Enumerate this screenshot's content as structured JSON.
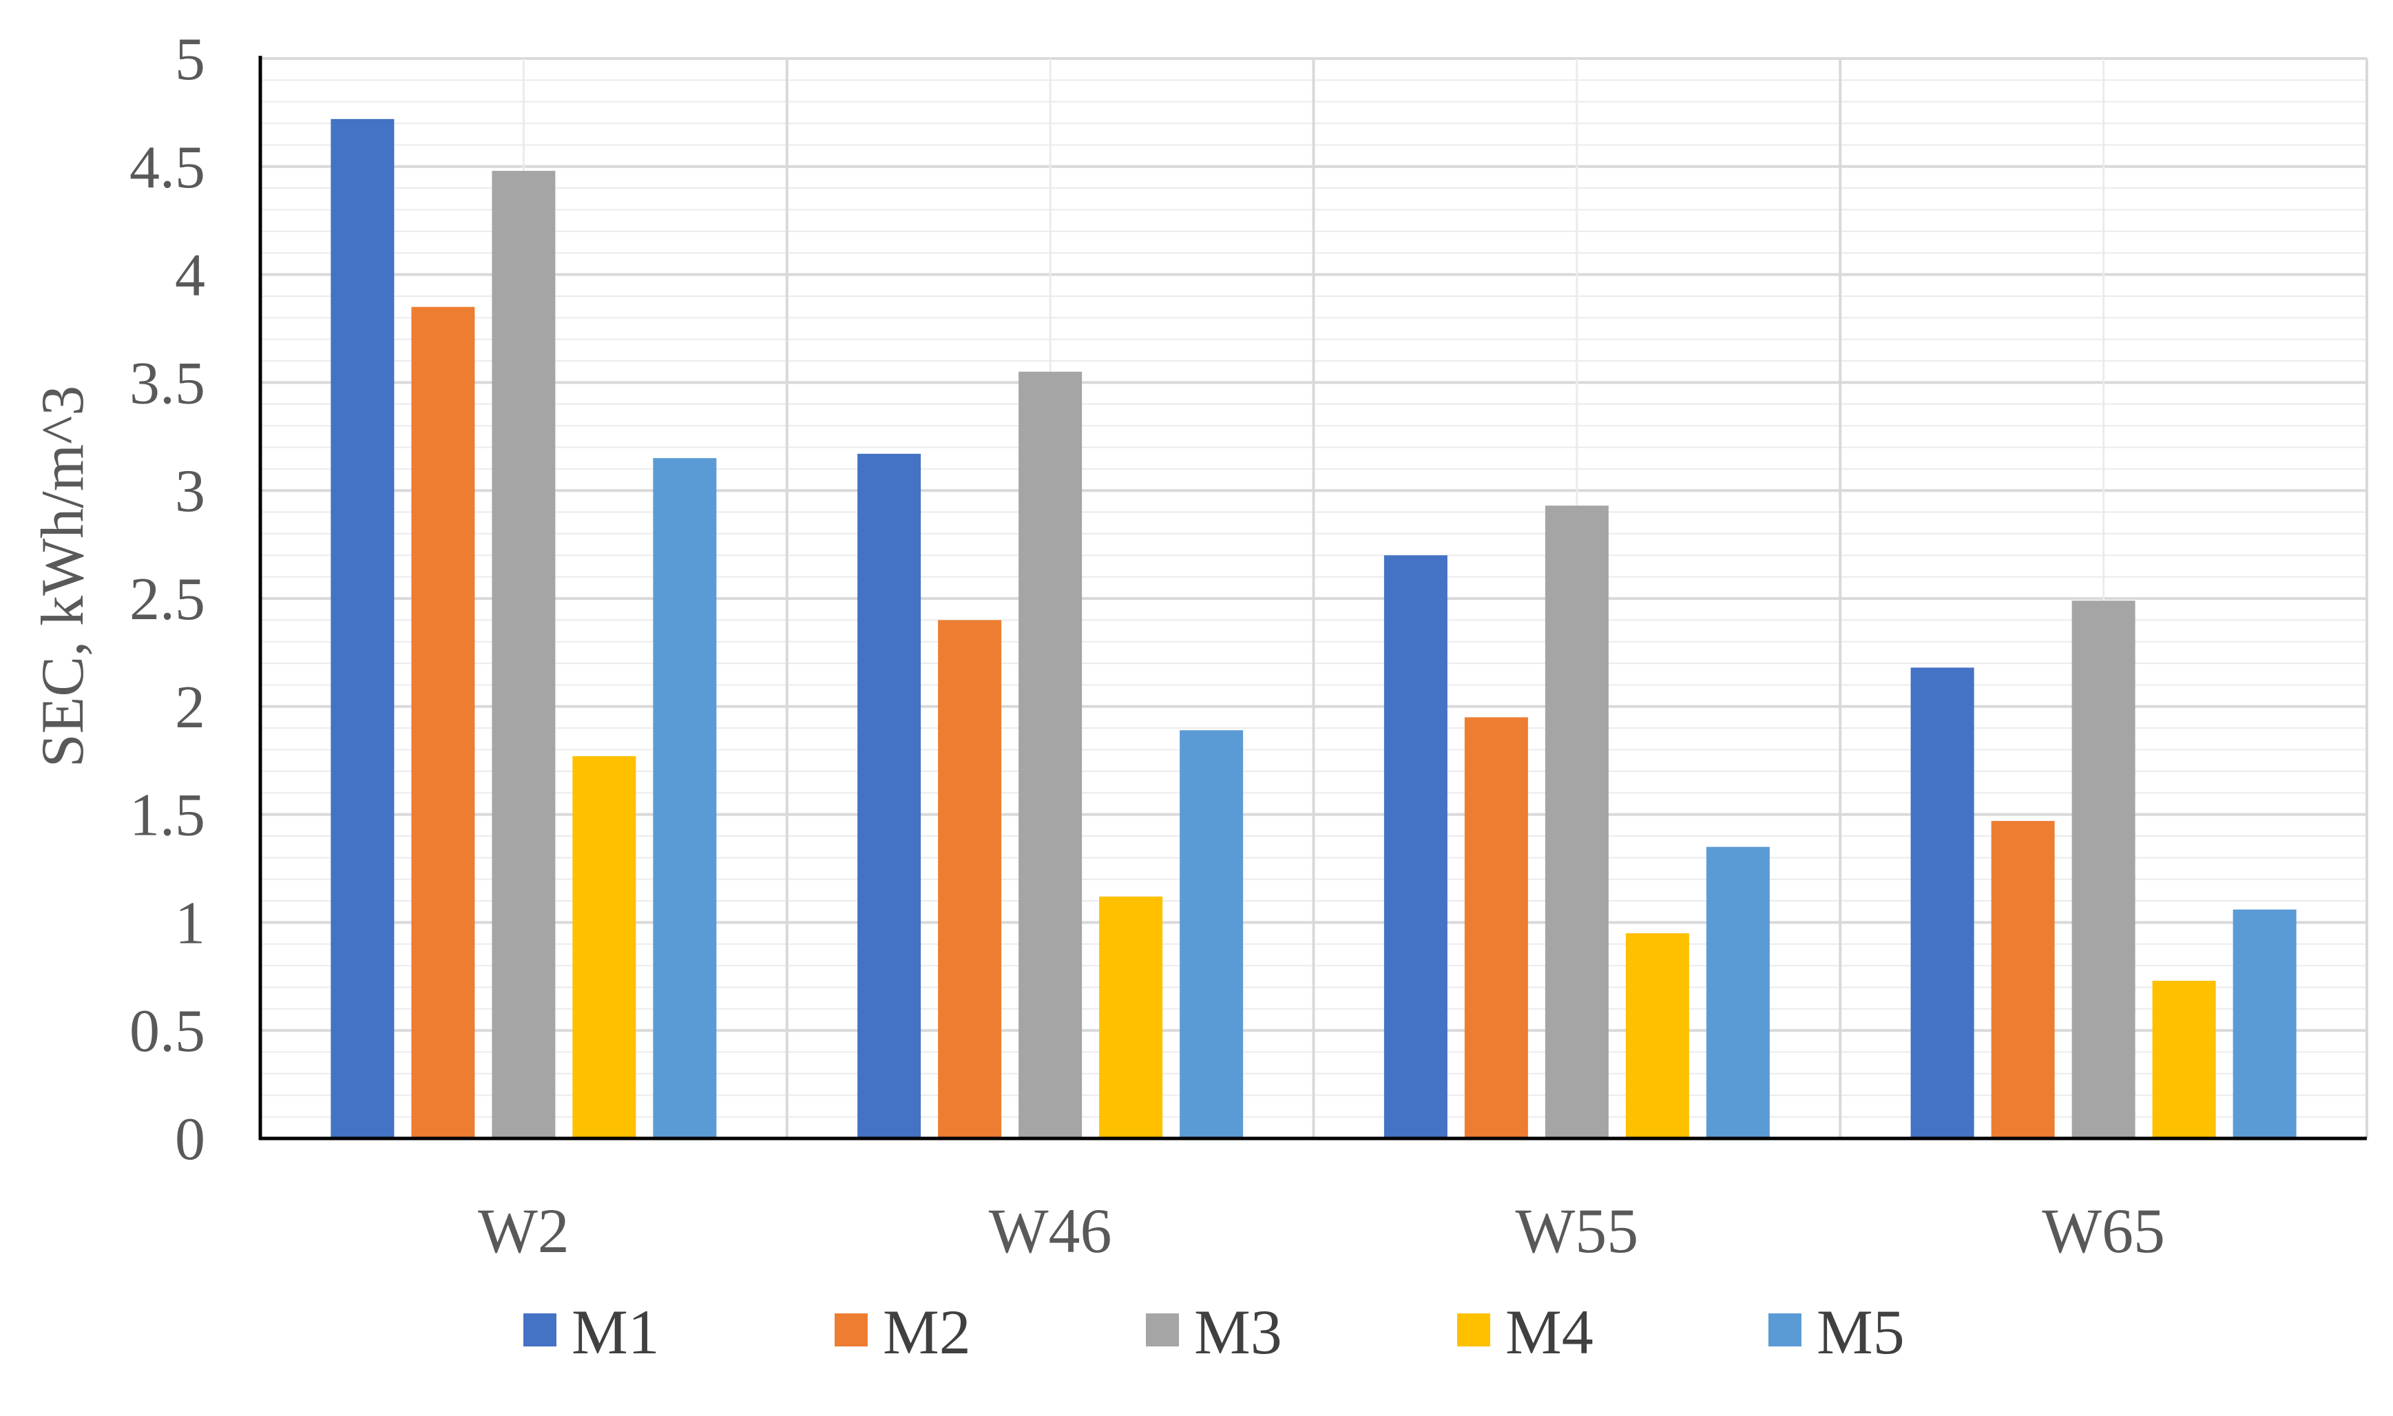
{
  "chart_data": {
    "type": "bar",
    "title": "",
    "xlabel": "",
    "ylabel": "SEC, kWh/m^3",
    "ylim": [
      0,
      5
    ],
    "yticks": [
      "0",
      "0.5",
      "1",
      "1.5",
      "2",
      "2.5",
      "3",
      "3.5",
      "4",
      "4.5",
      "5"
    ],
    "ytick_values": [
      0,
      0.5,
      1,
      1.5,
      2,
      2.5,
      3,
      3.5,
      4,
      4.5,
      5
    ],
    "minor_grid_step": 0.1,
    "grid": true,
    "legend_position": "bottom",
    "categories": [
      "W2",
      "W46",
      "W55",
      "W65"
    ],
    "series": [
      {
        "name": "M1",
        "color": "#4472C4",
        "values": [
          4.72,
          3.17,
          2.7,
          2.18
        ]
      },
      {
        "name": "M2",
        "color": "#ED7D31",
        "values": [
          3.85,
          2.4,
          1.95,
          1.47
        ]
      },
      {
        "name": "M3",
        "color": "#A5A5A5",
        "values": [
          4.48,
          3.55,
          2.93,
          2.49
        ]
      },
      {
        "name": "M4",
        "color": "#FFC000",
        "values": [
          1.77,
          1.12,
          0.95,
          0.73
        ]
      },
      {
        "name": "M5",
        "color": "#5B9BD5",
        "values": [
          3.15,
          1.89,
          1.35,
          1.06
        ]
      }
    ]
  }
}
